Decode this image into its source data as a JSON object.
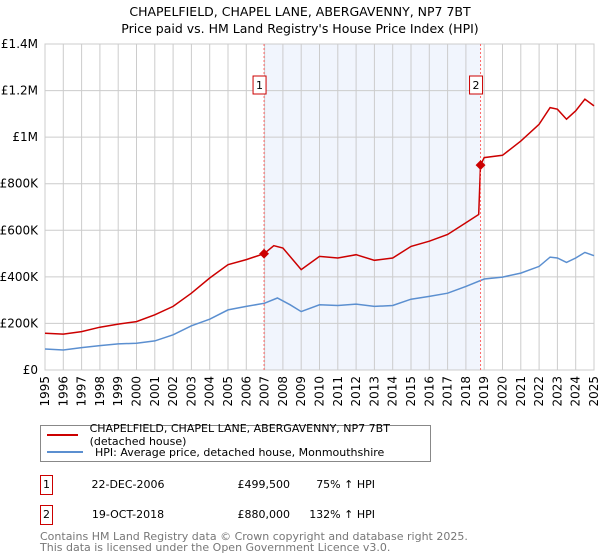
{
  "chart_data": {
    "type": "line",
    "title": "CHAPELFIELD, CHAPEL LANE, ABERGAVENNY, NP7 7BT",
    "subtitle": "Price paid vs. HM Land Registry's House Price Index (HPI)",
    "xlabel": "",
    "ylabel": "",
    "xlim": [
      1995,
      2025
    ],
    "ylim": [
      0,
      1400000
    ],
    "grid": true,
    "y_ticks": [
      {
        "v": 0,
        "label": "£0"
      },
      {
        "v": 200000,
        "label": "£200K"
      },
      {
        "v": 400000,
        "label": "£400K"
      },
      {
        "v": 600000,
        "label": "£600K"
      },
      {
        "v": 800000,
        "label": "£800K"
      },
      {
        "v": 1000000,
        "label": "£1M"
      },
      {
        "v": 1200000,
        "label": "£1.2M"
      },
      {
        "v": 1400000,
        "label": "£1.4M"
      }
    ],
    "x_ticks": [
      "1995",
      "1996",
      "1997",
      "1998",
      "1999",
      "2000",
      "2001",
      "2002",
      "2003",
      "2004",
      "2005",
      "2006",
      "2007",
      "2008",
      "2009",
      "2010",
      "2011",
      "2012",
      "2013",
      "2014",
      "2015",
      "2016",
      "2017",
      "2018",
      "2019",
      "2020",
      "2021",
      "2022",
      "2023",
      "2024",
      "2025"
    ],
    "shaded_range": [
      2006.97,
      2018.8
    ],
    "series": [
      {
        "name": "CHAPELFIELD, CHAPEL LANE, ABERGAVENNY, NP7 7BT (detached house)",
        "color": "#cc0000",
        "x": [
          1995,
          1996,
          1997,
          1998,
          1999,
          2000,
          2001,
          2002,
          2003,
          2004,
          2005,
          2006,
          2006.97,
          2007.5,
          2008,
          2009,
          2010,
          2011,
          2012,
          2013,
          2014,
          2015,
          2016,
          2017,
          2018,
          2018.7,
          2018.8,
          2019,
          2020,
          2021,
          2022,
          2022.6,
          2023,
          2023.5,
          2024,
          2024.5,
          2025
        ],
        "y": [
          158000,
          154000,
          165000,
          184000,
          197000,
          208000,
          237000,
          273000,
          330000,
          395000,
          452000,
          474000,
          499500,
          534000,
          524000,
          431000,
          488000,
          481000,
          495000,
          471000,
          481000,
          531000,
          553000,
          582000,
          632000,
          668000,
          880000,
          912000,
          922000,
          983000,
          1055000,
          1127000,
          1120000,
          1077000,
          1113000,
          1163000,
          1134000
        ]
      },
      {
        "name": "HPI: Average price, detached house, Monmouthshire",
        "color": "#5b8fd0",
        "x": [
          1995,
          1996,
          1997,
          1998,
          1999,
          2000,
          2001,
          2002,
          2003,
          2004,
          2005,
          2006,
          2007,
          2007.7,
          2008.4,
          2009,
          2010,
          2011,
          2012,
          2013,
          2014,
          2015,
          2016,
          2017,
          2018,
          2019,
          2020,
          2021,
          2022,
          2022.6,
          2023,
          2023.5,
          2024,
          2024.5,
          2025
        ],
        "y": [
          90000,
          86000,
          96000,
          105000,
          112000,
          115000,
          125000,
          151000,
          190000,
          218000,
          258000,
          273000,
          287000,
          309000,
          280000,
          251000,
          280000,
          277000,
          283000,
          273000,
          277000,
          304000,
          316000,
          330000,
          359000,
          391000,
          399000,
          416000,
          445000,
          485000,
          481000,
          462000,
          481000,
          505000,
          491000
        ]
      }
    ],
    "annotations": [
      {
        "label": "1",
        "x": 2006.97,
        "y": 499500
      },
      {
        "label": "2",
        "x": 2018.8,
        "y": 880000
      }
    ],
    "legend_placement": "below"
  },
  "transactions": [
    {
      "num": "1",
      "date": "22-DEC-2006",
      "price": "£499,500",
      "hpi": "75% ↑ HPI"
    },
    {
      "num": "2",
      "date": "19-OCT-2018",
      "price": "£880,000",
      "hpi": "132% ↑ HPI"
    }
  ],
  "footer": {
    "line1": "Contains HM Land Registry data © Crown copyright and database right 2025.",
    "line2": "This data is licensed under the Open Government Licence v3.0."
  }
}
